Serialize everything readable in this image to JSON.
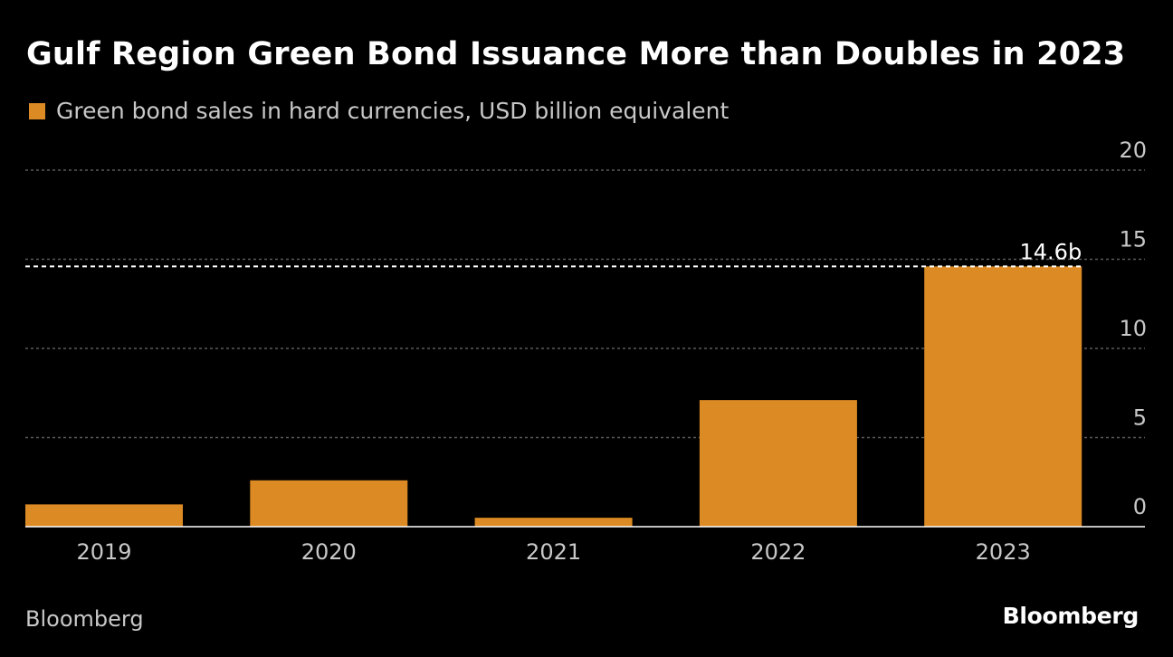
{
  "chart_data": {
    "type": "bar",
    "title": "Gulf Region Green Bond Issuance More than Doubles in 2023",
    "legend": [
      "Green bond sales in hard currencies, USD billion equivalent"
    ],
    "categories": [
      "2019",
      "2020",
      "2021",
      "2022",
      "2023"
    ],
    "series": [
      {
        "name": "Green bond sales in hard currencies, USD billion equivalent",
        "values": [
          1.25,
          2.6,
          0.5,
          7.1,
          14.6
        ]
      }
    ],
    "ylim": [
      0,
      20
    ],
    "yticks": [
      "0",
      "5",
      "10",
      "15",
      "20"
    ],
    "annotation": {
      "label": "14.6b",
      "value": 14.6
    },
    "grid": true,
    "xlabel": "",
    "ylabel": ""
  },
  "colors": {
    "bar": "#dc8a24",
    "background": "#000000",
    "grid": "#5a5a5a",
    "text": "#c8c8c8"
  },
  "source": "Bloomberg",
  "brand": "Bloomberg"
}
